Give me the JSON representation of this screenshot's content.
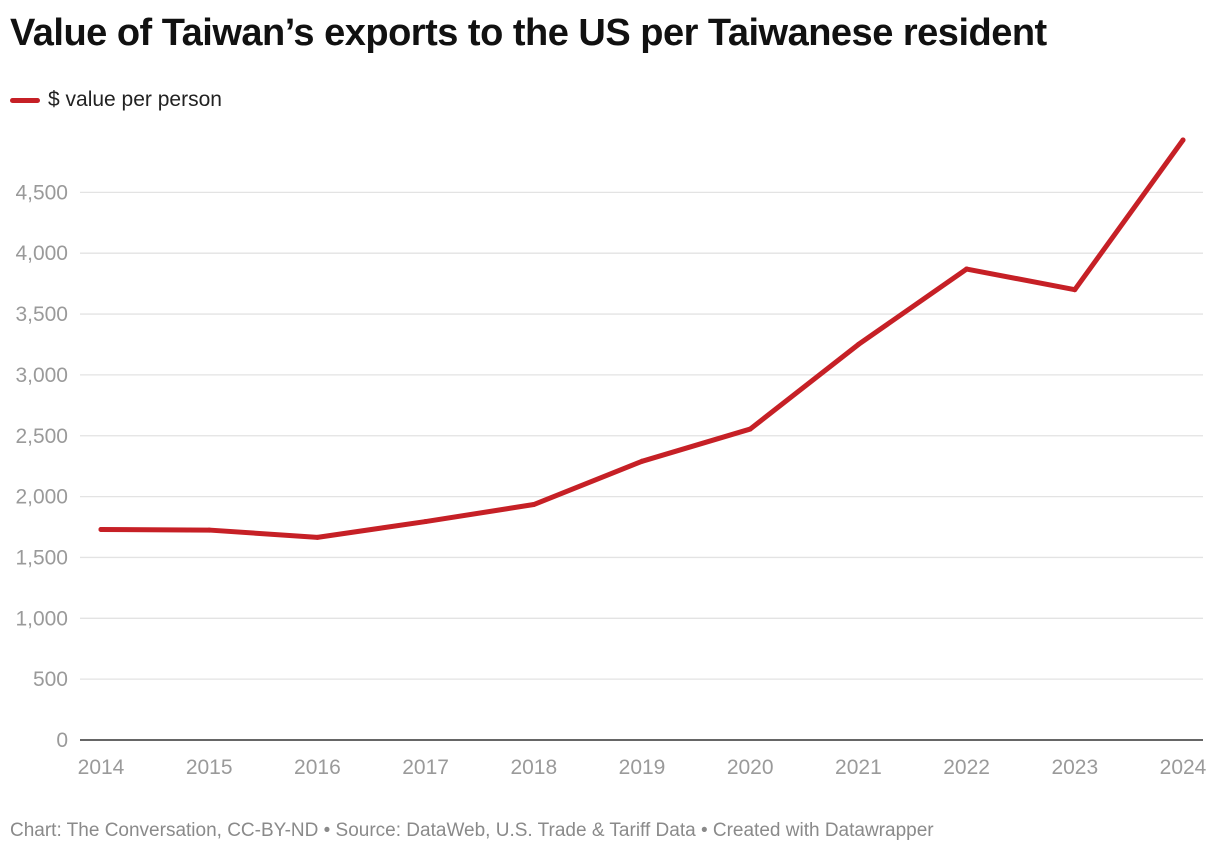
{
  "title": "Value of Taiwan’s exports to the US per Taiwanese resident",
  "footer": "Chart: The Conversation, CC-BY-ND • Source: DataWeb, U.S. Trade & Tariff Data • Created with Datawrapper",
  "colors": {
    "series": "#c62026",
    "grid": "#e3e3e3",
    "axis": "#333333"
  },
  "chart_data": {
    "type": "line",
    "title": "Value of Taiwan’s exports to the US per Taiwanese resident",
    "xlabel": "",
    "ylabel": "",
    "x": [
      "2014",
      "2015",
      "2016",
      "2017",
      "2018",
      "2019",
      "2020",
      "2021",
      "2022",
      "2023",
      "2024"
    ],
    "series": [
      {
        "name": "$ value per person",
        "values": [
          1730,
          1725,
          1665,
          1795,
          1935,
          2290,
          2555,
          3250,
          3870,
          3700,
          4930
        ]
      }
    ],
    "ylim": [
      0,
      5000
    ],
    "yticks": [
      0,
      500,
      1000,
      1500,
      2000,
      2500,
      3000,
      3500,
      4000,
      4500
    ],
    "ytick_labels": [
      "0",
      "500",
      "1,000",
      "1,500",
      "2,000",
      "2,500",
      "3,000",
      "3,500",
      "4,000",
      "4,500"
    ],
    "grid": true,
    "legend_position": "top-left"
  }
}
